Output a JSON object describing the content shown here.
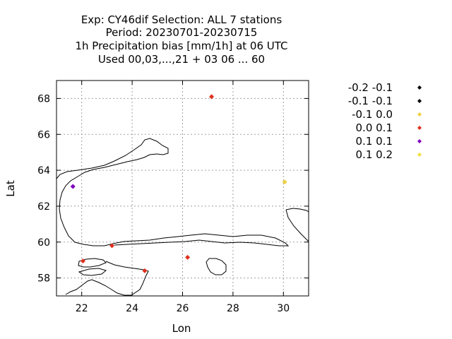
{
  "chart_data": {
    "type": "scatter",
    "title_lines": [
      "Exp: CY46dif   Selection: ALL      7 stations",
      "Period: 20230701-20230715",
      "1h Precipitation bias [mm/1h] at  06 UTC",
      "Used  00,03,...,21  + 03 06 ... 60"
    ],
    "xlabel": "Lon",
    "ylabel": "Lat",
    "xlim": [
      21,
      31
    ],
    "ylim": [
      57,
      69
    ],
    "xticks": [
      22,
      24,
      26,
      28,
      30
    ],
    "yticks": [
      58,
      60,
      62,
      64,
      66,
      68
    ],
    "grid": true,
    "legend_placement": "right",
    "series": [
      {
        "name": "-0.2 -0.1",
        "color": "#000000",
        "points": []
      },
      {
        "name": "-0.1 -0.1",
        "color": "#000000",
        "points": []
      },
      {
        "name": "-0.1 0.0",
        "color": "#f0d040",
        "points": [
          [
            30.05,
            63.35
          ]
        ]
      },
      {
        "name": "0.0 0.1",
        "color": "#e0301e",
        "points": [
          [
            27.15,
            68.1
          ],
          [
            23.2,
            59.8
          ],
          [
            22.05,
            58.95
          ],
          [
            24.5,
            58.4
          ],
          [
            26.2,
            59.15
          ]
        ]
      },
      {
        "name": "0.1 0.1",
        "color": "#8000c0",
        "points": [
          [
            21.65,
            63.1
          ]
        ]
      },
      {
        "name": "0.1 0.2",
        "color": "#f0e040",
        "points": []
      }
    ]
  }
}
